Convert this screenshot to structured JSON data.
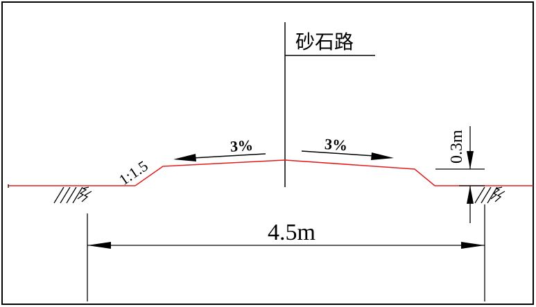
{
  "title": "砂石路",
  "slope_left": "3%",
  "slope_right": "3%",
  "side_slope": "1:1.5",
  "height_dim": "0.3m",
  "width_dim": "4.5m",
  "colors": {
    "road_profile": "#e21b1b",
    "lines": "#000000",
    "frame": "#000000",
    "background": "#ffffff"
  },
  "icons": {
    "ground_hatch": "earth-hatch-icon",
    "arrow": "dimension-arrow-icon"
  }
}
